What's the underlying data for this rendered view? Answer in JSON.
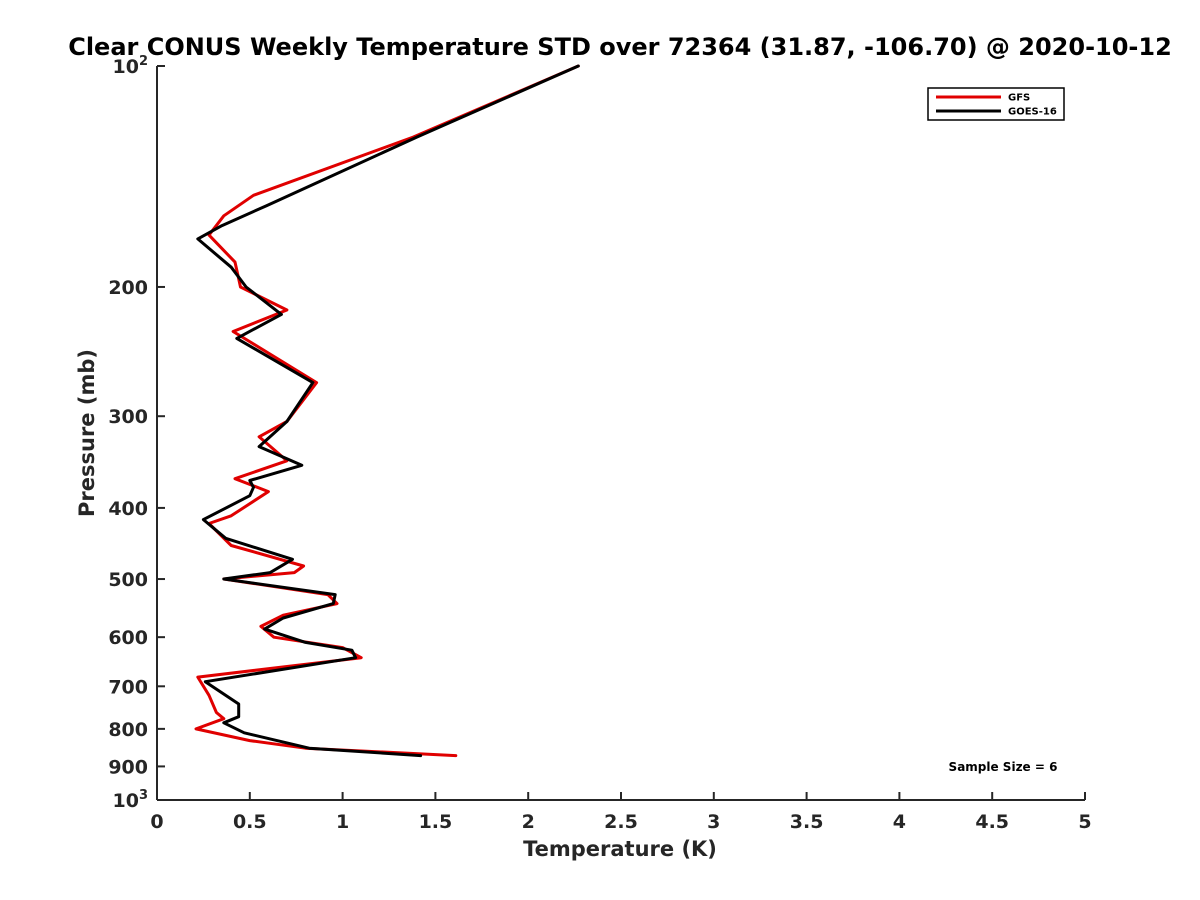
{
  "chart_data": {
    "type": "line",
    "title": "Clear CONUS Weekly Temperature STD over 72364 (31.87, -106.70) @ 2020-10-12",
    "xlabel": "Temperature (K)",
    "ylabel": "Pressure (mb)",
    "xlim": [
      0,
      5
    ],
    "ylim": [
      100,
      1000
    ],
    "yscale": "log",
    "y_reversed": true,
    "grid": false,
    "legend_position": "top-right",
    "x_ticks": [
      "0",
      "0.5",
      "1",
      "1.5",
      "2",
      "2.5",
      "3",
      "3.5",
      "4",
      "4.5",
      "5"
    ],
    "y_ticks": [
      {
        "value": 100,
        "base": "10",
        "exp": "2"
      },
      {
        "value": 200,
        "label": "200"
      },
      {
        "value": 300,
        "label": "300"
      },
      {
        "value": 400,
        "label": "400"
      },
      {
        "value": 500,
        "label": "500"
      },
      {
        "value": 600,
        "label": "600"
      },
      {
        "value": 700,
        "label": "700"
      },
      {
        "value": 800,
        "label": "800"
      },
      {
        "value": 900,
        "label": "900"
      },
      {
        "value": 1000,
        "base": "10",
        "exp": "3"
      }
    ],
    "annotation": "Sample Size = 6",
    "series": [
      {
        "name": "GFS",
        "color": "#e00000",
        "points": [
          [
            2.27,
            100
          ],
          [
            1.38,
            125
          ],
          [
            0.52,
            150
          ],
          [
            0.36,
            160
          ],
          [
            0.28,
            170
          ],
          [
            0.42,
            185
          ],
          [
            0.45,
            200
          ],
          [
            0.7,
            215
          ],
          [
            0.41,
            230
          ],
          [
            0.86,
            270
          ],
          [
            0.7,
            305
          ],
          [
            0.55,
            320
          ],
          [
            0.7,
            345
          ],
          [
            0.42,
            365
          ],
          [
            0.6,
            380
          ],
          [
            0.4,
            410
          ],
          [
            0.28,
            420
          ],
          [
            0.4,
            450
          ],
          [
            0.79,
            480
          ],
          [
            0.74,
            490
          ],
          [
            0.36,
            500
          ],
          [
            0.92,
            525
          ],
          [
            0.97,
            540
          ],
          [
            0.68,
            560
          ],
          [
            0.56,
            580
          ],
          [
            0.63,
            600
          ],
          [
            1.0,
            620
          ],
          [
            1.1,
            640
          ],
          [
            0.22,
            680
          ],
          [
            0.28,
            720
          ],
          [
            0.32,
            760
          ],
          [
            0.36,
            775
          ],
          [
            0.21,
            800
          ],
          [
            0.5,
            830
          ],
          [
            0.8,
            850
          ],
          [
            1.61,
            870
          ]
        ]
      },
      {
        "name": "GOES-16",
        "color": "#000000",
        "points": [
          [
            2.27,
            100
          ],
          [
            1.4,
            125
          ],
          [
            0.59,
            155
          ],
          [
            0.35,
            165
          ],
          [
            0.22,
            172
          ],
          [
            0.4,
            188
          ],
          [
            0.48,
            200
          ],
          [
            0.67,
            218
          ],
          [
            0.43,
            235
          ],
          [
            0.84,
            270
          ],
          [
            0.7,
            305
          ],
          [
            0.55,
            330
          ],
          [
            0.78,
            350
          ],
          [
            0.5,
            367
          ],
          [
            0.52,
            375
          ],
          [
            0.5,
            385
          ],
          [
            0.25,
            415
          ],
          [
            0.37,
            440
          ],
          [
            0.73,
            470
          ],
          [
            0.61,
            490
          ],
          [
            0.36,
            500
          ],
          [
            0.96,
            525
          ],
          [
            0.95,
            540
          ],
          [
            0.68,
            565
          ],
          [
            0.58,
            585
          ],
          [
            0.8,
            610
          ],
          [
            1.05,
            625
          ],
          [
            1.07,
            640
          ],
          [
            0.26,
            690
          ],
          [
            0.44,
            740
          ],
          [
            0.44,
            770
          ],
          [
            0.36,
            785
          ],
          [
            0.47,
            810
          ],
          [
            0.82,
            850
          ],
          [
            1.42,
            870
          ]
        ]
      }
    ]
  }
}
